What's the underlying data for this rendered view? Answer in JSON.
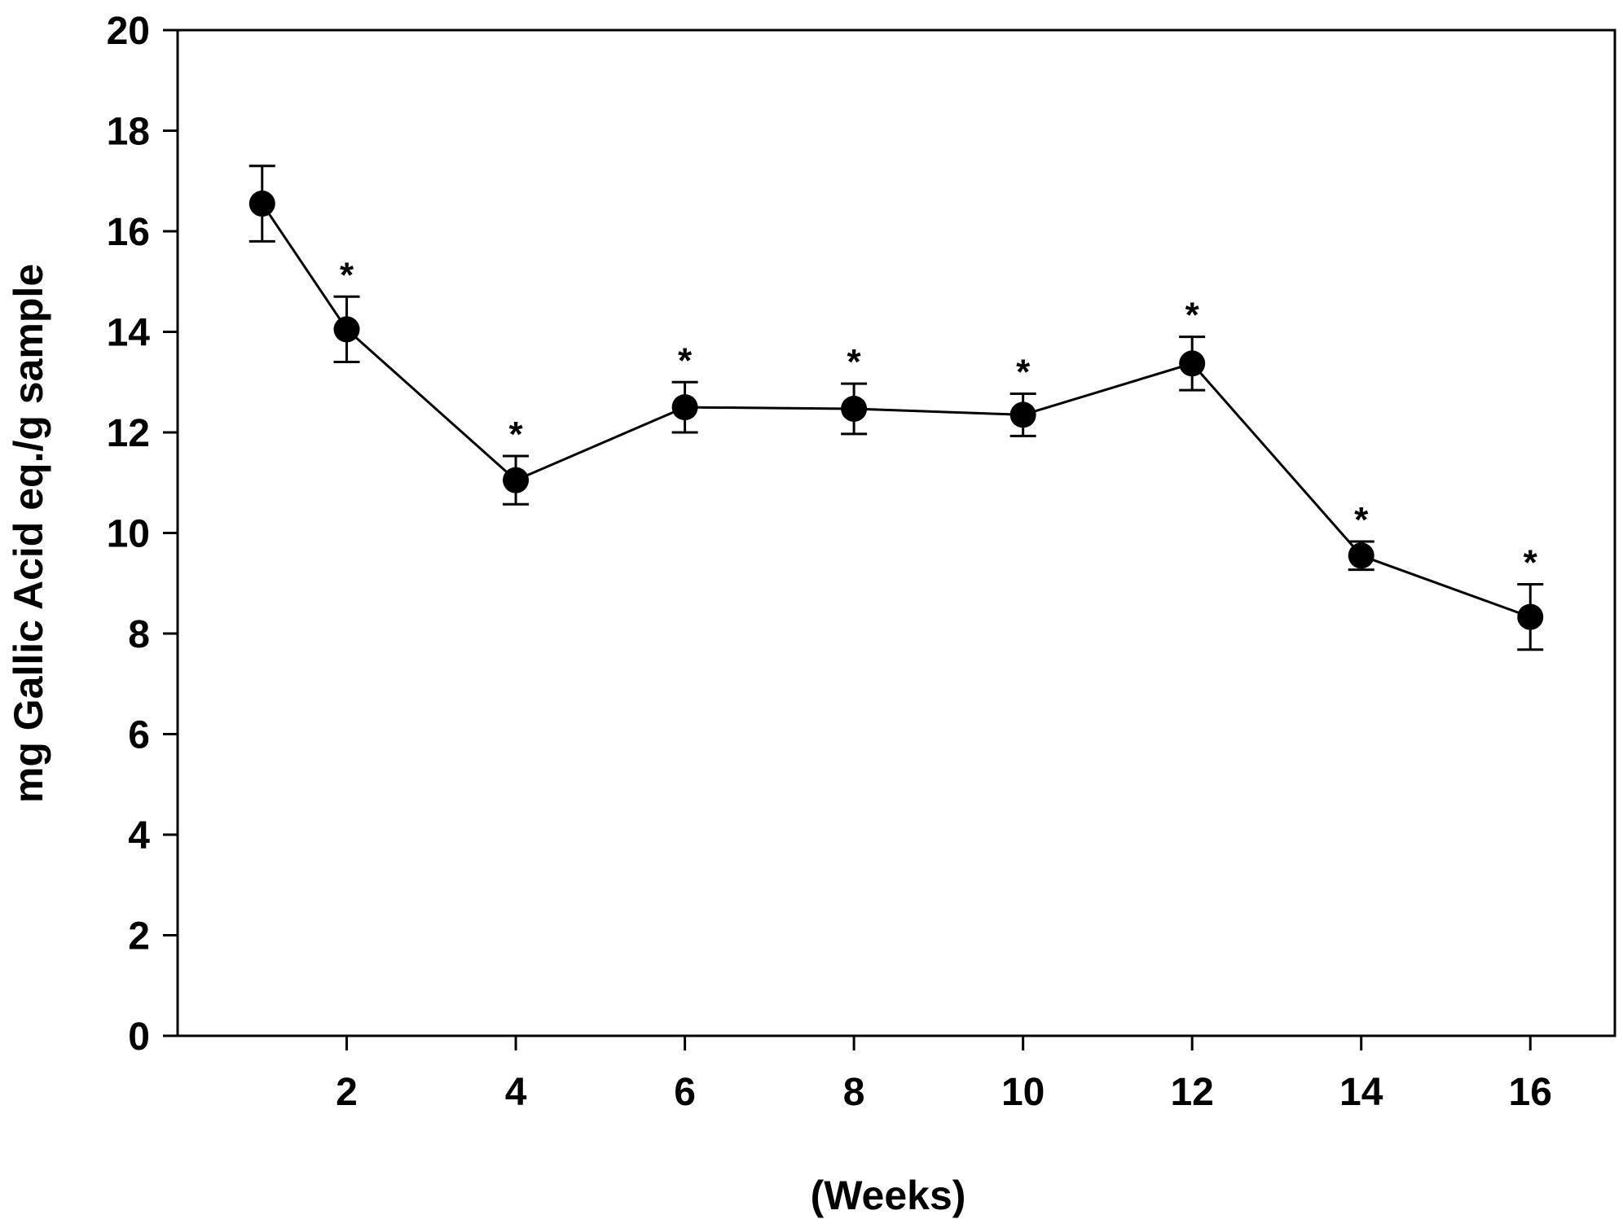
{
  "chart_data": {
    "type": "line",
    "title": "",
    "xlabel": "(Weeks)",
    "ylabel": "mg Gallic Acid eq./g sample",
    "xlim": [
      0,
      17
    ],
    "ylim": [
      0,
      20
    ],
    "x_ticks": [
      "2",
      "4",
      "6",
      "8",
      "10",
      "12",
      "14",
      "16"
    ],
    "y_ticks": [
      "0",
      "2",
      "4",
      "6",
      "8",
      "10",
      "12",
      "14",
      "16",
      "18",
      "20"
    ],
    "grid": false,
    "significance_marker": "*",
    "series": [
      {
        "x": [
          1,
          2,
          4,
          6,
          8,
          10,
          12,
          14,
          16
        ],
        "y": [
          16.55,
          14.05,
          11.05,
          12.5,
          12.47,
          12.35,
          13.37,
          9.55,
          8.33
        ],
        "error": [
          0.75,
          0.65,
          0.48,
          0.5,
          0.5,
          0.42,
          0.53,
          0.28,
          0.65
        ],
        "significant": [
          false,
          true,
          true,
          true,
          true,
          true,
          true,
          true,
          true
        ]
      }
    ]
  }
}
